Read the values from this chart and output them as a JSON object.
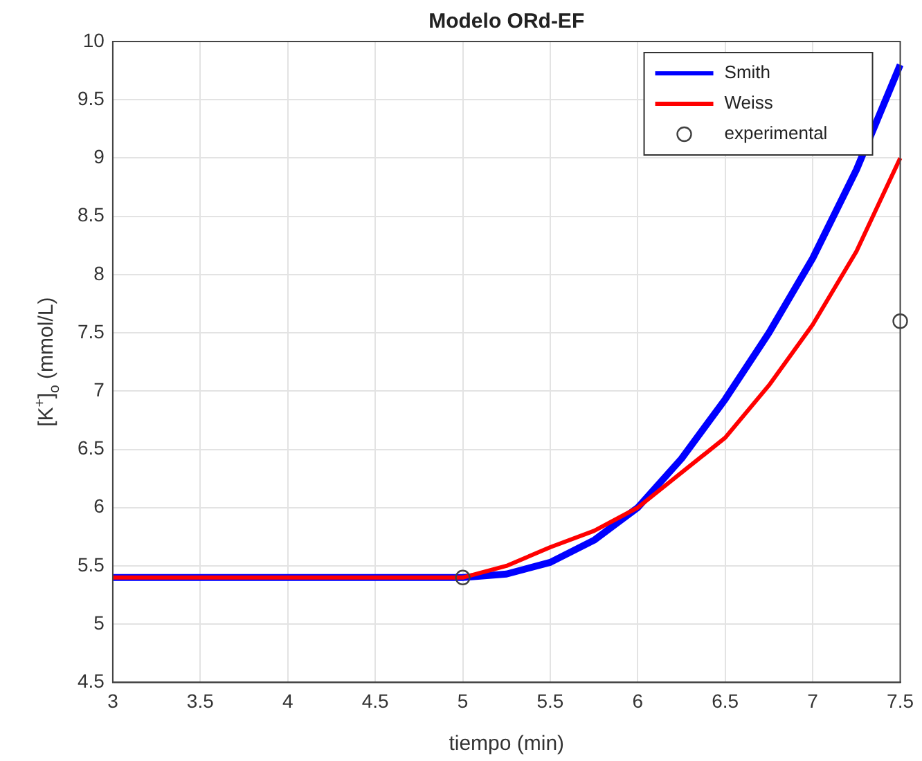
{
  "chart_data": {
    "type": "line",
    "title": "Modelo ORd-EF",
    "xlabel": "tiempo (min)",
    "ylabel": "[K$^{+}$]$_{o}$ (mmol/L)",
    "xlim": [
      3,
      7.5
    ],
    "xticks": [
      3,
      3.5,
      4,
      4.5,
      5,
      5.5,
      6,
      6.5,
      7,
      7.5
    ],
    "ylim": [
      4.5,
      10
    ],
    "yticks": [
      4.5,
      5,
      5.5,
      6,
      6.5,
      7,
      7.5,
      8,
      8.5,
      9,
      9.5,
      10
    ],
    "grid": true,
    "legend": "top right",
    "series": [
      {
        "name": "Smith",
        "color": "#0000ff",
        "x": [
          3,
          5,
          5.25,
          5.5,
          5.75,
          6,
          6.25,
          6.5,
          6.75,
          7,
          7.25,
          7.5
        ],
        "values": [
          5.4,
          5.4,
          5.43,
          5.53,
          5.72,
          6.0,
          6.42,
          6.93,
          7.5,
          8.14,
          8.9,
          9.8
        ]
      },
      {
        "name": "Weiss",
        "color": "#ff0000",
        "x": [
          3,
          5,
          5.25,
          5.5,
          5.75,
          6,
          6.25,
          6.5,
          6.75,
          7,
          7.25,
          7.5
        ],
        "values": [
          5.4,
          5.4,
          5.5,
          5.66,
          5.8,
          6.0,
          6.3,
          6.6,
          7.05,
          7.57,
          8.2,
          9.0
        ]
      },
      {
        "name": "experimental",
        "type": "scatter",
        "marker": "circle",
        "color": "#404040",
        "x": [
          5,
          7.5
        ],
        "values": [
          5.4,
          7.6
        ]
      }
    ]
  }
}
